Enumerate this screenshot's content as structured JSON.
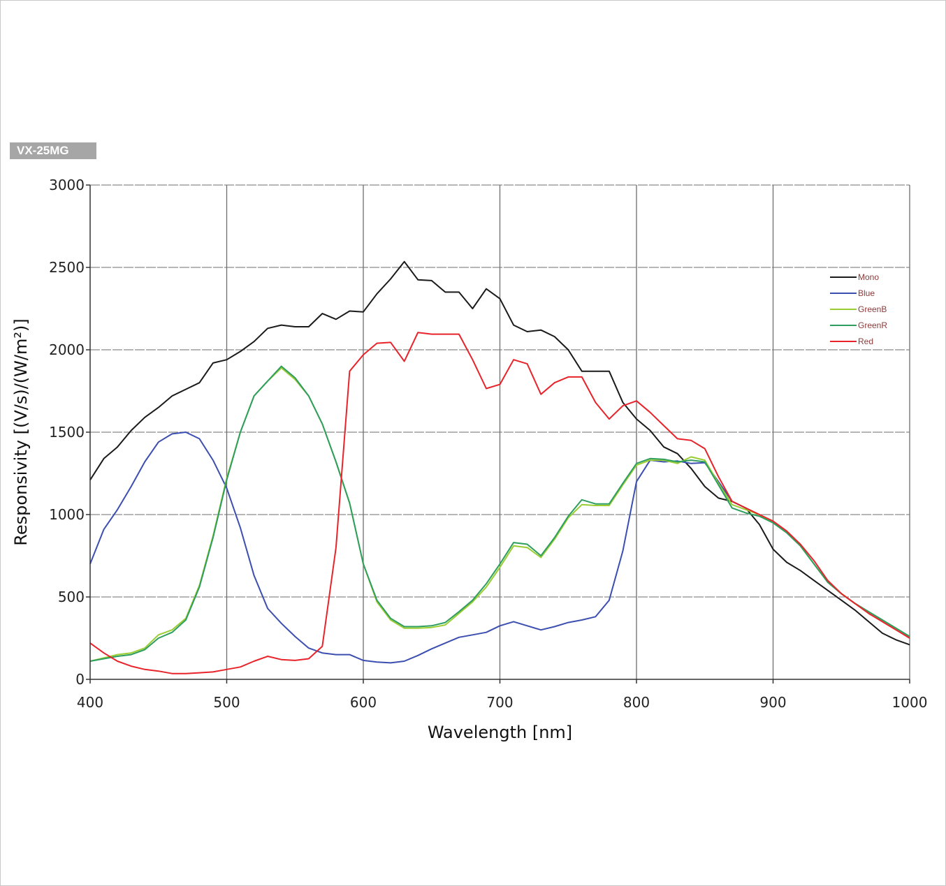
{
  "model_tag": "VX-25MG",
  "chart_data": {
    "type": "line",
    "xlabel": "Wavelength [nm]",
    "ylabel": "Responsivity [(V/s)/(W/m²)]",
    "xlim": [
      400,
      1000
    ],
    "ylim": [
      0,
      3000
    ],
    "xticks": [
      400,
      500,
      600,
      700,
      800,
      900,
      1000
    ],
    "yticks": [
      0,
      500,
      1000,
      1500,
      2000,
      2500,
      3000
    ],
    "grid": true,
    "legend_position": "top-right",
    "x": [
      400,
      410,
      420,
      430,
      440,
      450,
      460,
      470,
      480,
      490,
      500,
      510,
      520,
      530,
      540,
      550,
      560,
      570,
      580,
      590,
      600,
      610,
      620,
      630,
      640,
      650,
      660,
      670,
      680,
      690,
      700,
      710,
      720,
      730,
      740,
      750,
      760,
      770,
      780,
      790,
      800,
      810,
      820,
      830,
      840,
      850,
      860,
      870,
      880,
      890,
      900,
      910,
      920,
      930,
      940,
      950,
      960,
      970,
      980,
      990,
      1000
    ],
    "series": [
      {
        "name": "Mono",
        "color": "#1a1a1a",
        "values": [
          1210,
          1340,
          1410,
          1510,
          1590,
          1650,
          1720,
          1760,
          1800,
          1920,
          1940,
          1990,
          2050,
          2130,
          2150,
          2140,
          2140,
          2220,
          2185,
          2235,
          2230,
          2340,
          2430,
          2535,
          2425,
          2420,
          2350,
          2350,
          2250,
          2370,
          2310,
          2150,
          2110,
          2120,
          2080,
          2000,
          1870,
          1870,
          1870,
          1680,
          1580,
          1510,
          1410,
          1370,
          1280,
          1170,
          1100,
          1080,
          1040,
          940,
          790,
          710,
          660,
          600,
          540,
          480,
          420,
          350,
          280,
          240,
          210
        ]
      },
      {
        "name": "Blue",
        "color": "#3c4fb0",
        "values": [
          700,
          910,
          1030,
          1170,
          1320,
          1440,
          1490,
          1500,
          1460,
          1330,
          1160,
          920,
          630,
          430,
          340,
          260,
          190,
          160,
          150,
          150,
          115,
          105,
          100,
          110,
          145,
          185,
          220,
          255,
          270,
          285,
          325,
          350,
          325,
          300,
          320,
          345,
          360,
          380,
          480,
          780,
          1200,
          1330,
          1320,
          1325,
          1310,
          1315,
          1200,
          1080,
          1040,
          1000,
          950,
          890,
          810,
          700,
          590,
          520,
          460,
          410,
          360,
          310,
          260
        ]
      },
      {
        "name": "GreenB",
        "color": "#9acd32",
        "values": [
          110,
          130,
          150,
          160,
          190,
          270,
          300,
          370,
          570,
          870,
          1220,
          1500,
          1720,
          1810,
          1890,
          1820,
          1720,
          1550,
          1320,
          1070,
          700,
          470,
          360,
          310,
          310,
          315,
          330,
          400,
          470,
          560,
          680,
          810,
          800,
          740,
          850,
          980,
          1060,
          1055,
          1055,
          1180,
          1300,
          1330,
          1330,
          1310,
          1350,
          1330,
          1190,
          1060,
          1030,
          1000,
          950,
          890,
          810,
          700,
          590,
          520,
          460,
          410,
          360,
          310,
          260
        ]
      },
      {
        "name": "GreenR",
        "color": "#2e9e5e",
        "values": [
          110,
          125,
          140,
          150,
          180,
          250,
          285,
          360,
          560,
          860,
          1210,
          1500,
          1720,
          1810,
          1900,
          1830,
          1720,
          1550,
          1320,
          1070,
          700,
          480,
          370,
          320,
          320,
          325,
          345,
          410,
          480,
          580,
          700,
          830,
          820,
          750,
          860,
          990,
          1090,
          1065,
          1065,
          1190,
          1310,
          1340,
          1335,
          1320,
          1330,
          1320,
          1180,
          1040,
          1010,
          990,
          950,
          890,
          810,
          700,
          590,
          520,
          460,
          410,
          360,
          310,
          260
        ]
      },
      {
        "name": "Red",
        "color": "#e8232a",
        "values": [
          220,
          160,
          110,
          80,
          60,
          50,
          35,
          35,
          40,
          45,
          60,
          75,
          110,
          140,
          120,
          115,
          125,
          200,
          800,
          1870,
          1970,
          2040,
          2045,
          1930,
          2105,
          2095,
          2095,
          2095,
          1940,
          1765,
          1790,
          1940,
          1915,
          1730,
          1800,
          1835,
          1835,
          1680,
          1580,
          1660,
          1690,
          1620,
          1540,
          1460,
          1450,
          1400,
          1230,
          1080,
          1040,
          1000,
          960,
          900,
          820,
          720,
          600,
          520,
          460,
          400,
          350,
          300,
          250
        ]
      }
    ]
  }
}
